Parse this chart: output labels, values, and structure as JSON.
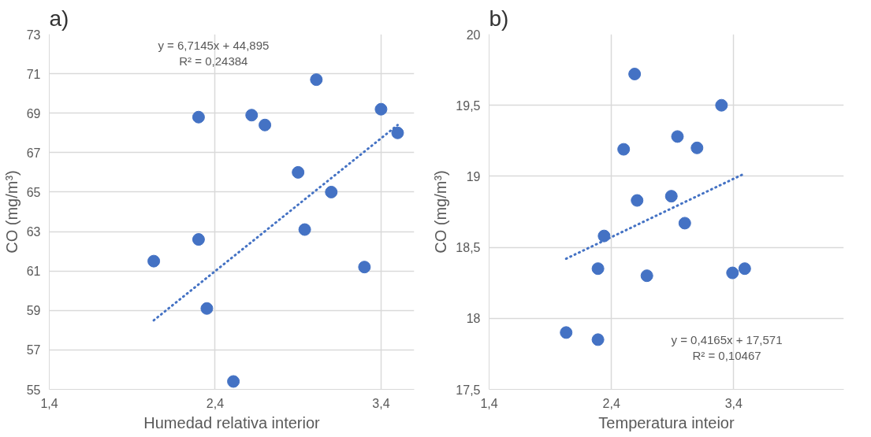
{
  "chart_data": [
    {
      "type": "scatter",
      "title": "a)",
      "xlabel": "Humedad relativa interior",
      "ylabel": "CO (mg/m³)",
      "xlim": [
        1.4,
        3.6
      ],
      "xticks": [
        {
          "value": 1.4,
          "label": "1,4"
        },
        {
          "value": 2.4,
          "label": "2,4"
        },
        {
          "value": 3.4,
          "label": "3,4"
        }
      ],
      "ylim": [
        55,
        73
      ],
      "yticks": [
        55,
        57,
        59,
        61,
        63,
        65,
        67,
        69,
        71,
        73
      ],
      "grid": true,
      "series": [
        {
          "marker": "circle",
          "color": "#4472c4",
          "x": [
            2.03,
            2.3,
            2.3,
            2.35,
            2.51,
            2.62,
            2.7,
            2.9,
            3.01,
            2.94,
            3.1,
            3.3,
            3.4,
            3.5
          ],
          "values": [
            61.5,
            68.8,
            62.6,
            59.1,
            55.4,
            68.9,
            68.4,
            66.0,
            70.7,
            63.1,
            65.0,
            61.2,
            69.2,
            68.0
          ]
        },
        {
          "type": "line",
          "color": "#4472c4",
          "line_style": "dotted",
          "x": [
            2.03,
            3.5
          ],
          "values": [
            58.5,
            68.4
          ]
        }
      ],
      "annotations": [
        "y = 6,7145x + 44,895\nR² = 0,24384"
      ]
    },
    {
      "type": "scatter",
      "title": "b)",
      "xlabel": "Temperatura inteior",
      "ylabel": "CO (mg/m³)",
      "xlim": [
        1.4,
        4.3
      ],
      "xticks": [
        {
          "value": 1.4,
          "label": "1,4"
        },
        {
          "value": 2.4,
          "label": "2,4"
        },
        {
          "value": 3.4,
          "label": "3,4"
        }
      ],
      "ylim": [
        17.5,
        20
      ],
      "yticks": [
        {
          "value": 17.5,
          "label": "17,5"
        },
        18,
        {
          "value": 18.5,
          "label": "18,5"
        },
        19,
        {
          "value": 19.5,
          "label": "19,5"
        },
        20
      ],
      "grid": true,
      "series": [
        {
          "marker": "circle",
          "color": "#4472c4",
          "x": [
            2.03,
            2.29,
            2.29,
            2.34,
            2.5,
            2.59,
            2.61,
            2.69,
            2.89,
            2.94,
            3.0,
            3.1,
            3.3,
            3.39,
            3.49
          ],
          "values": [
            17.9,
            17.85,
            18.35,
            18.58,
            19.19,
            19.72,
            18.83,
            18.3,
            18.86,
            19.28,
            18.67,
            19.2,
            19.5,
            18.32,
            18.35
          ]
        },
        {
          "type": "line",
          "color": "#4472c4",
          "line_style": "dotted",
          "x": [
            2.03,
            3.49
          ],
          "values": [
            18.42,
            19.02
          ]
        }
      ],
      "annotations": [
        "y = 0,4165x + 17,571\nR² = 0,10467"
      ]
    }
  ]
}
